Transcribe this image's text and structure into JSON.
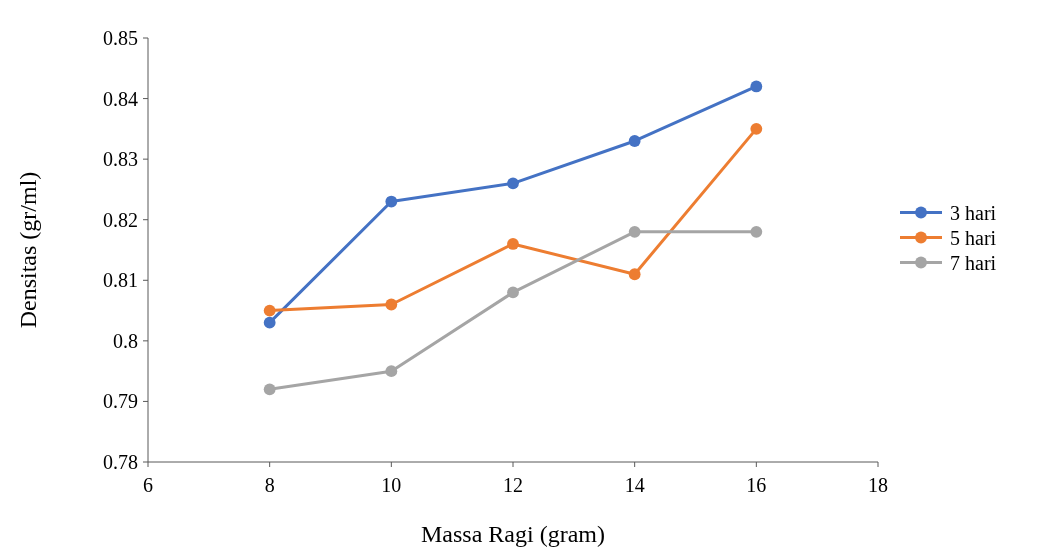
{
  "chart_data": {
    "type": "line",
    "xlabel": "Massa Ragi (gram)",
    "ylabel": "Densitas (gr/ml)",
    "x": [
      8,
      10,
      12,
      14,
      16
    ],
    "series": [
      {
        "name": "3 hari",
        "color": "#4472c4",
        "values": [
          0.803,
          0.823,
          0.826,
          0.833,
          0.842
        ]
      },
      {
        "name": "5 hari",
        "color": "#ed7d31",
        "values": [
          0.805,
          0.806,
          0.816,
          0.811,
          0.835
        ]
      },
      {
        "name": "7 hari",
        "color": "#a5a5a5",
        "values": [
          0.792,
          0.795,
          0.808,
          0.818,
          0.818
        ]
      }
    ],
    "xlim": [
      6,
      18
    ],
    "xticks": [
      6,
      8,
      10,
      12,
      14,
      16,
      18
    ],
    "ylim": [
      0.78,
      0.85
    ],
    "yticks": [
      0.78,
      0.79,
      0.8,
      0.81,
      0.82,
      0.83,
      0.84,
      0.85
    ],
    "grid": false,
    "legend": "right",
    "marker": "circle",
    "line_style": "solid"
  }
}
